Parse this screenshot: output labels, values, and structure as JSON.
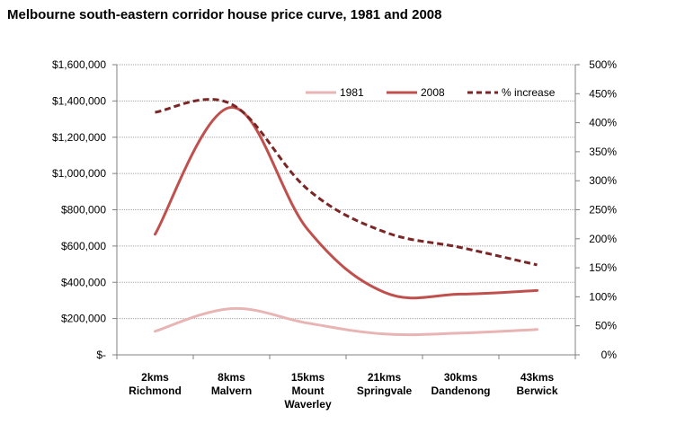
{
  "chart_data": {
    "type": "line",
    "title": "Melbourne south-eastern corridor house price curve, 1981 and 2008",
    "categories": [
      [
        "2kms",
        "Richmond"
      ],
      [
        "8kms",
        "Malvern"
      ],
      [
        "15kms",
        "Mount",
        "Waverley"
      ],
      [
        "21kms",
        "Springvale"
      ],
      [
        "30kms",
        "Dandenong"
      ],
      [
        "43kms",
        "Berwick"
      ]
    ],
    "y_left": {
      "ylim": [
        0,
        1600000
      ],
      "ticks": [
        "$-",
        "$200,000",
        "$400,000",
        "$600,000",
        "$800,000",
        "$1,000,000",
        "$1,200,000",
        "$1,400,000",
        "$1,600,000"
      ]
    },
    "y_right": {
      "ylim": [
        0,
        500
      ],
      "ticks": [
        "0%",
        "50%",
        "100%",
        "150%",
        "200%",
        "250%",
        "300%",
        "350%",
        "400%",
        "450%",
        "500%"
      ]
    },
    "series": [
      {
        "name": "1981",
        "axis": "left",
        "color": "#e8b4b4",
        "style": "solid",
        "values": [
          130000,
          255000,
          175000,
          115000,
          120000,
          140000
        ]
      },
      {
        "name": "2008",
        "axis": "left",
        "color": "#c0504d",
        "style": "solid",
        "values": [
          665000,
          1365000,
          690000,
          345000,
          335000,
          355000
        ]
      },
      {
        "name": "% increase",
        "axis": "right",
        "color": "#7a2626",
        "style": "dashed",
        "values": [
          418,
          432,
          285,
          212,
          185,
          155
        ]
      }
    ],
    "grid": true,
    "legend_position": "top-right"
  }
}
